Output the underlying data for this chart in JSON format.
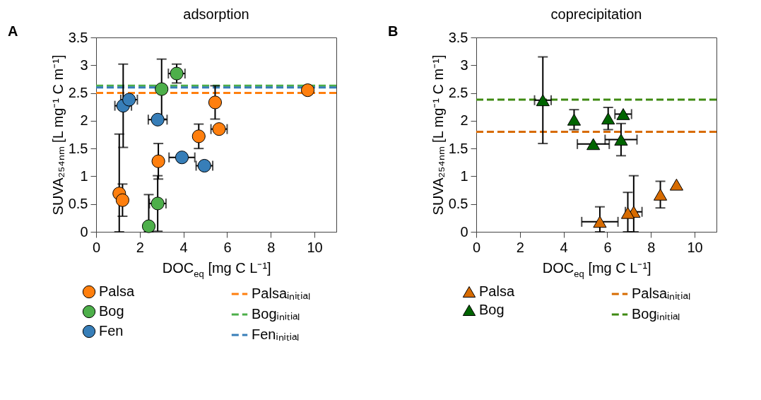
{
  "chart_data": [
    {
      "type": "scatter",
      "title": "adsorption",
      "xlabel": "DOC$_{eq}$ [mg C L⁻¹]",
      "ylabel": "SUVA₂₅₄ₙₘ [L mg⁻¹ C m⁻¹]",
      "annotations": [
        "A"
      ],
      "xlim": [
        0,
        11
      ],
      "ylim": [
        0,
        3.5
      ],
      "xticks": [
        0,
        2,
        4,
        6,
        8,
        10
      ],
      "yticks": [
        0,
        0.5,
        1,
        1.5,
        2,
        2.5,
        3,
        3.5
      ],
      "grid": false,
      "legend": "bottom",
      "series": [
        {
          "name": "Palsa",
          "marker": "circle",
          "color": "#ff7f0e",
          "x": [
            9.69,
            5.45,
            5.63,
            4.7,
            2.85,
            1.06,
            1.21
          ],
          "values": [
            2.55,
            2.33,
            1.85,
            1.72,
            1.27,
            0.69,
            0.57
          ],
          "errors": [
            null,
            0.3,
            null,
            0.22,
            0.32,
            [
              0,
              1.76
            ],
            0.29
          ],
          "xerrors": [
            null,
            null,
            0.37,
            null,
            null,
            null,
            null
          ]
        },
        {
          "name": "Bog",
          "marker": "circle",
          "color": "#4daf4a",
          "x": [
            3.69,
            3.0,
            2.82,
            2.41
          ],
          "values": [
            2.85,
            2.57,
            0.51,
            0.1
          ],
          "errors": [
            0.17,
            0.54,
            0.5,
            [
              0,
              0.67
            ]
          ],
          "xerrors": [
            0.38,
            null,
            0.38,
            null
          ]
        },
        {
          "name": "Fen",
          "marker": "circle",
          "color": "#377eb8",
          "x": [
            1.24,
            1.51,
            2.82,
            3.93,
            4.96
          ],
          "values": [
            2.27,
            2.38,
            2.02,
            1.34,
            1.19
          ],
          "errors": [
            0.75,
            null,
            null,
            null,
            null
          ],
          "xerrors": [
            0.38,
            0.38,
            0.43,
            0.59,
            0.38
          ]
        },
        {
          "name": "Palsaᵢₙᵢₜᵢₐₗ",
          "type": "line",
          "line_style": "dashed",
          "color": "#ff7f0e",
          "x": [
            0,
            11
          ],
          "values": [
            2.5,
            2.5
          ]
        },
        {
          "name": "Bogᵢₙᵢₜᵢₐₗ",
          "type": "line",
          "line_style": "dashed",
          "color": "#4daf4a",
          "x": [
            0,
            11
          ],
          "values": [
            2.63,
            2.63
          ]
        },
        {
          "name": "Fenᵢₙᵢₜᵢₐₗ",
          "type": "line",
          "line_style": "dashed",
          "color": "#377eb8",
          "x": [
            0,
            11
          ],
          "values": [
            2.6,
            2.6
          ]
        }
      ]
    },
    {
      "type": "scatter",
      "title": "coprecipitation",
      "xlabel": "DOC$_{eq}$ [mg C L⁻¹]",
      "ylabel": "SUVA₂₅₄ₙₘ [L mg⁻¹ C m⁻¹]",
      "annotations": [
        "B"
      ],
      "xlim": [
        0,
        11
      ],
      "ylim": [
        0,
        3.5
      ],
      "xticks": [
        0,
        2,
        4,
        6,
        8,
        10
      ],
      "yticks": [
        0,
        0.5,
        1,
        1.5,
        2,
        2.5,
        3,
        3.5
      ],
      "grid": false,
      "legend": "bottom",
      "series": [
        {
          "name": "Palsa",
          "marker": "triangle",
          "color": "#d76b00",
          "x": [
            9.17,
            8.43,
            7.21,
            6.94,
            5.66
          ],
          "values": [
            0.85,
            0.67,
            0.36,
            0.34,
            0.18
          ],
          "errors": [
            null,
            0.24,
            [
              0,
              1.01
            ],
            [
              0,
              0.71
            ],
            [
              0,
              0.45
            ]
          ],
          "xerrors": [
            null,
            null,
            0.38,
            null,
            0.83
          ]
        },
        {
          "name": "Bog",
          "marker": "triangle",
          "color": "#006400",
          "x": [
            3.05,
            4.48,
            5.36,
            6.04,
            6.73,
            6.63
          ],
          "values": [
            2.37,
            2.02,
            1.58,
            2.04,
            2.12,
            1.66
          ],
          "errors": [
            0.78,
            0.18,
            null,
            0.2,
            null,
            0.29
          ],
          "xerrors": [
            0.38,
            null,
            0.73,
            null,
            0.38,
            0.73
          ]
        },
        {
          "name": "Palsaᵢₙᵢₜᵢₐₗ",
          "type": "line",
          "line_style": "dashed",
          "color": "#d76b00",
          "x": [
            0,
            11
          ],
          "values": [
            1.8,
            1.8
          ]
        },
        {
          "name": "Bogᵢₙᵢₜᵢₐₗ",
          "type": "line",
          "line_style": "dashed",
          "color": "#3f8a12",
          "x": [
            0,
            11
          ],
          "values": [
            2.38,
            2.38
          ]
        }
      ]
    }
  ]
}
